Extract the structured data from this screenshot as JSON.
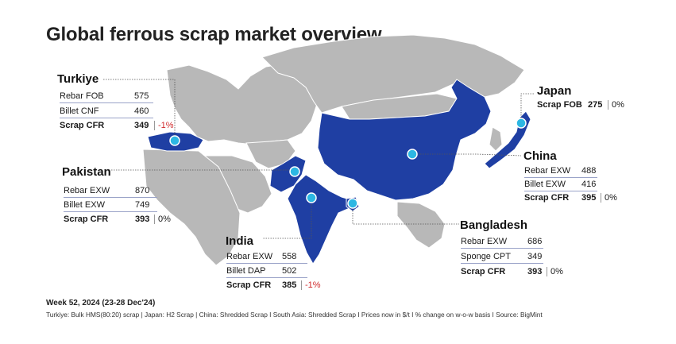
{
  "title": "Global ferrous scrap market overview",
  "colors": {
    "highlight": "#1f3fa3",
    "land": "#b8b8b8",
    "marker": "#2cb7e3",
    "negative": "#d0292b"
  },
  "countries": {
    "turkiye": {
      "name": "Turkiye",
      "rows": [
        {
          "label": "Rebar FOB",
          "value": "575"
        },
        {
          "label": "Billet CNF",
          "value": "460"
        }
      ],
      "scrap": {
        "label": "Scrap CFR",
        "value": "349",
        "change": "-1%"
      }
    },
    "pakistan": {
      "name": "Pakistan",
      "rows": [
        {
          "label": "Rebar EXW",
          "value": "870"
        },
        {
          "label": "Billet EXW",
          "value": "749"
        }
      ],
      "scrap": {
        "label": "Scrap CFR",
        "value": "393",
        "change": "0%"
      }
    },
    "india": {
      "name": "India",
      "rows": [
        {
          "label": "Rebar EXW",
          "value": "558"
        },
        {
          "label": "Billet DAP",
          "value": "502"
        }
      ],
      "scrap": {
        "label": "Scrap CFR",
        "value": "385",
        "change": "-1%"
      }
    },
    "japan": {
      "name": "Japan",
      "scrap": {
        "label": "Scrap FOB",
        "value": "275",
        "change": "0%"
      }
    },
    "china": {
      "name": "China",
      "rows": [
        {
          "label": "Rebar EXW",
          "value": "488"
        },
        {
          "label": "Billet EXW",
          "value": "416"
        }
      ],
      "scrap": {
        "label": "Scrap CFR",
        "value": "395",
        "change": "0%"
      }
    },
    "bangladesh": {
      "name": "Bangladesh",
      "rows": [
        {
          "label": "Rebar EXW",
          "value": "686"
        },
        {
          "label": "Sponge CPT",
          "value": "349"
        }
      ],
      "scrap": {
        "label": "Scrap CFR",
        "value": "393",
        "change": "0%"
      }
    }
  },
  "footer": {
    "week": "Week 52, 2024 (23-28 Dec'24)",
    "notes": "Turkiye: Bulk HMS(80:20) scrap | Japan: H2 Scrap | China: Shredded Scrap  I  South Asia: Shredded Scrap  I  Prices now in $/t  I  % change on w-o-w basis  I  Source: BigMint"
  }
}
